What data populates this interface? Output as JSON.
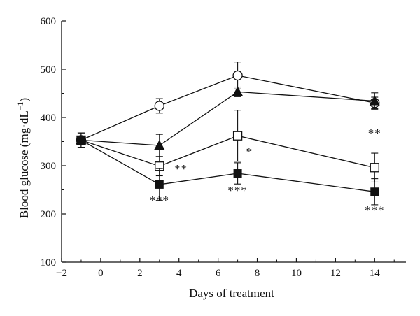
{
  "chart_data": {
    "type": "line",
    "xlabel": "Days of treatment",
    "ylabel": "Blood glucose (mg·dL",
    "ylabel_sup": "−1",
    "ylabel_close": ")",
    "xlim": [
      -2,
      15.6
    ],
    "ylim": [
      100,
      600
    ],
    "xticks": [
      -2,
      0,
      2,
      4,
      6,
      8,
      10,
      12,
      14
    ],
    "xtick_labels": [
      "−2",
      "0",
      "2",
      "4",
      "6",
      "8",
      "10",
      "12",
      "14"
    ],
    "yticks": [
      100,
      200,
      300,
      400,
      500,
      600
    ],
    "ytick_labels": [
      "100",
      "200",
      "300",
      "400",
      "500",
      "600"
    ],
    "grid": false,
    "legend": "none",
    "x": [
      -1,
      3,
      7,
      14
    ],
    "series": [
      {
        "marker": "circle-open",
        "values": [
          353,
          424,
          487,
          430
        ],
        "errors": [
          15,
          15,
          28,
          12
        ]
      },
      {
        "marker": "triangle-filled",
        "values": [
          353,
          342,
          453,
          434
        ],
        "errors": [
          15,
          23,
          10,
          17
        ]
      },
      {
        "marker": "square-open",
        "values": [
          353,
          299,
          362,
          296
        ],
        "errors": [
          15,
          20,
          53,
          30
        ]
      },
      {
        "marker": "square-filled",
        "values": [
          353,
          261,
          284,
          246
        ],
        "errors": [
          15,
          33,
          22,
          27
        ]
      }
    ],
    "annotations": [
      {
        "text": "**",
        "x": 4.1,
        "y": 294
      },
      {
        "text": "***",
        "x": 3.0,
        "y": 229
      },
      {
        "text": "*",
        "x": 7.6,
        "y": 330
      },
      {
        "text": "***",
        "x": 7.0,
        "y": 249
      },
      {
        "text": "**",
        "x": 14.0,
        "y": 368
      },
      {
        "text": "***",
        "x": 14.0,
        "y": 209
      }
    ]
  }
}
